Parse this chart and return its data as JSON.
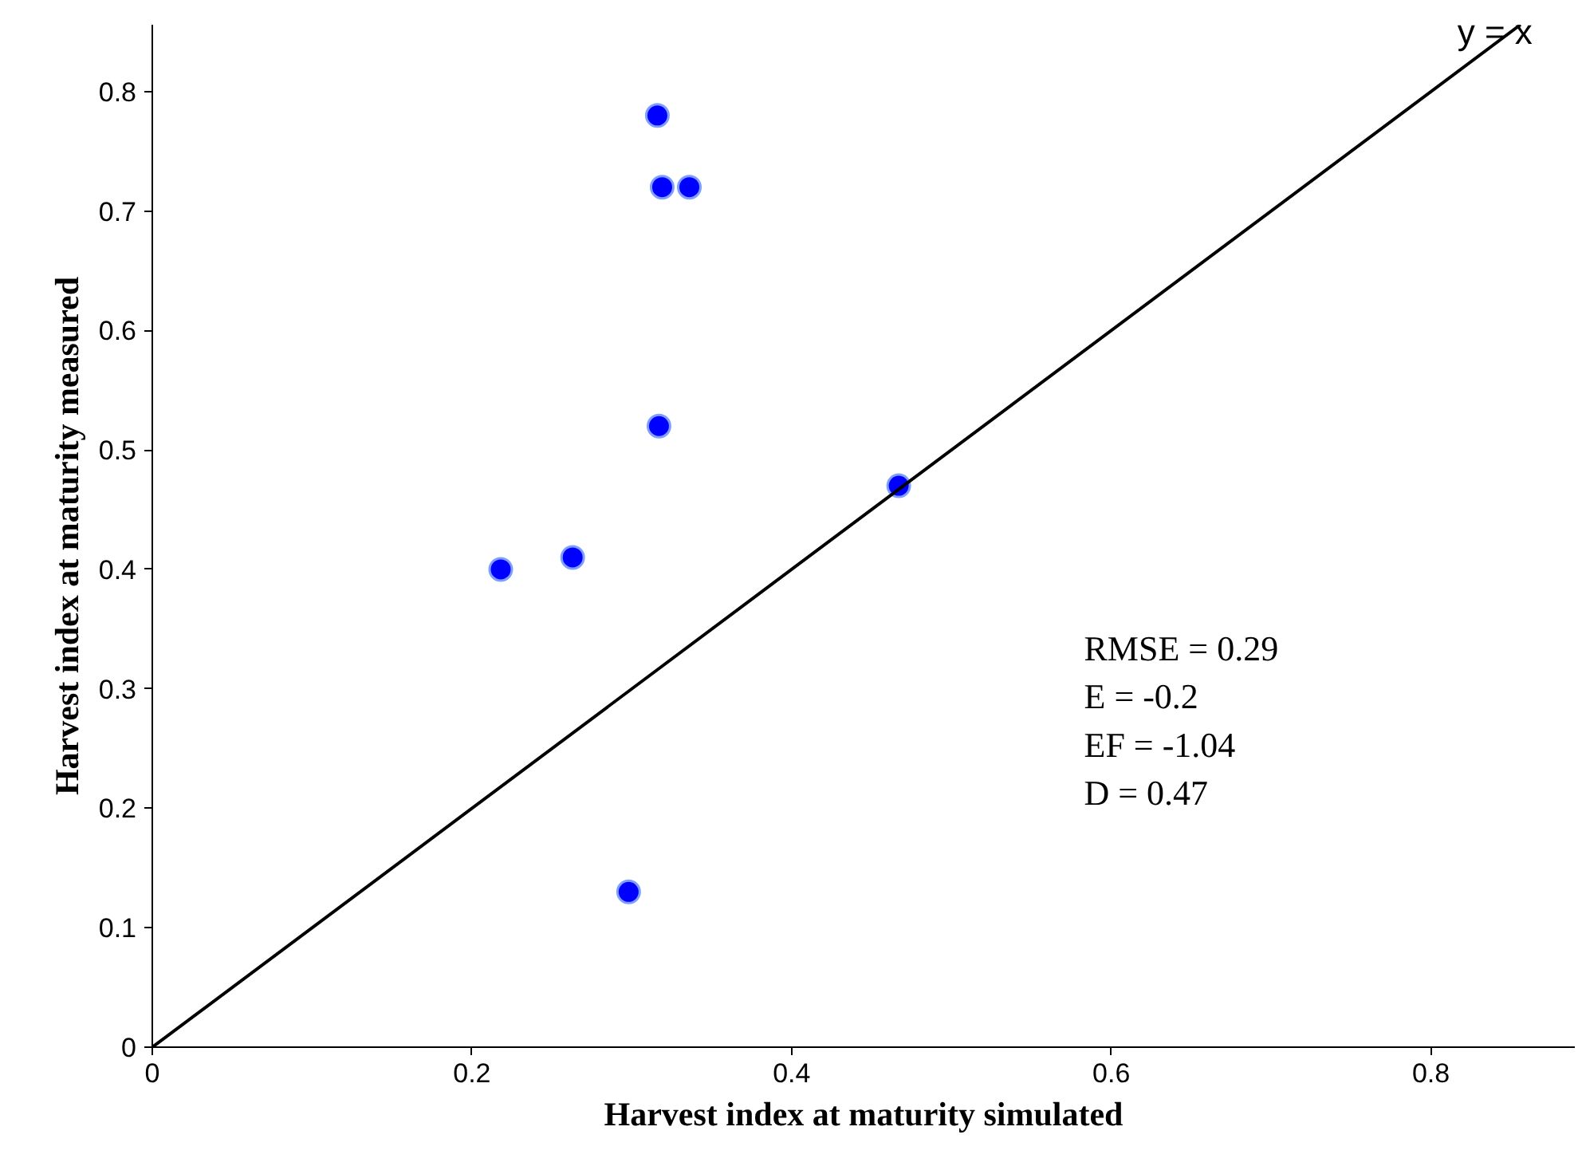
{
  "chart_data": {
    "type": "scatter",
    "xlabel": "Harvest index at maturity simulated",
    "ylabel": "Harvest index at maturity measured",
    "xlim": [
      0,
      0.89
    ],
    "ylim": [
      0,
      0.856
    ],
    "xticks": [
      0,
      0.2,
      0.4,
      0.6,
      0.8
    ],
    "yticks": [
      0,
      0.1,
      0.2,
      0.3,
      0.4,
      0.5,
      0.6,
      0.7,
      0.8
    ],
    "grid": false,
    "series": [
      {
        "marker": "circle",
        "color": "#0000ff",
        "x": [
          0.316,
          0.319,
          0.336,
          0.317,
          0.467,
          0.218,
          0.263,
          0.298
        ],
        "values": [
          0.78,
          0.72,
          0.72,
          0.52,
          0.47,
          0.4,
          0.41,
          0.13
        ]
      },
      {
        "type": "line",
        "marker": "none",
        "color": "#000000",
        "x": [
          0,
          0.856
        ],
        "values": [
          0,
          0.856
        ]
      }
    ],
    "annotations": [
      {
        "text": "y = x",
        "x": 0.84,
        "y": 0.85
      },
      "RMSE = 0.29",
      "E = -0.2",
      "EF = -1.04",
      "D = 0.47"
    ]
  }
}
